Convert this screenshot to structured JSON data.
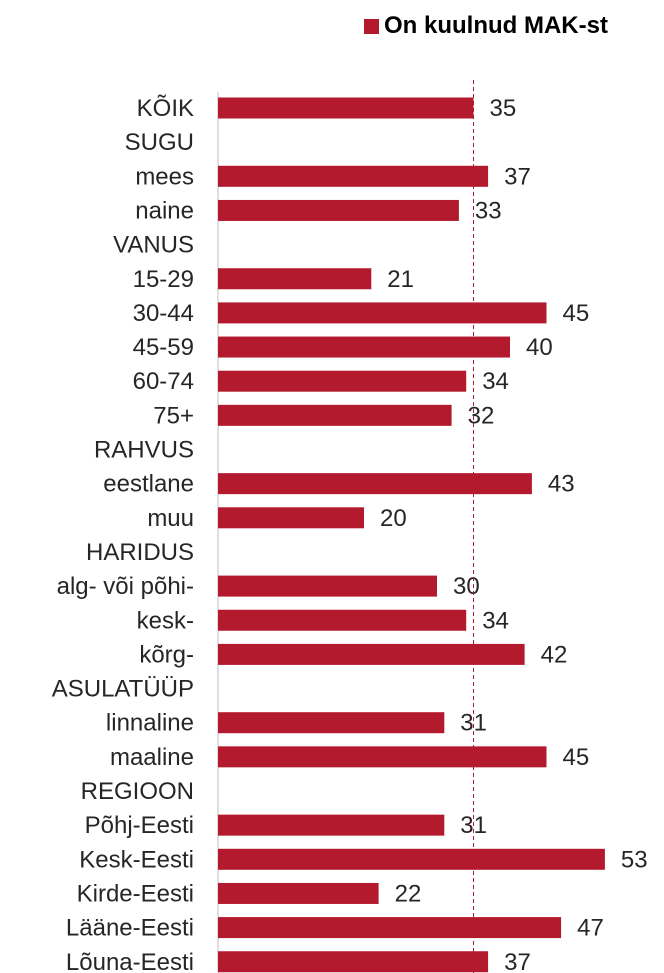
{
  "legend": {
    "label": "On kuulnud MAK-st",
    "color": "#b31a2d"
  },
  "chart_data": {
    "type": "bar",
    "orientation": "horizontal",
    "legend_position": "top-right",
    "grid": false,
    "reference_line": {
      "value": 35,
      "style": "dashed",
      "color": "#b31a2d"
    },
    "xlim": [
      0,
      55
    ],
    "categories": [
      "KÕIK",
      "SUGU",
      "mees",
      "naine",
      "VANUS",
      "15-29",
      "30-44",
      "45-59",
      "60-74",
      "75+",
      "RAHVUS",
      "eestlane",
      "muu",
      "HARIDUS",
      "alg- või põhi-",
      "kesk-",
      "kõrg-",
      "ASULATÜÜP",
      "linnaline",
      "maaline",
      "REGIOON",
      "Põhj-Eesti",
      "Kesk-Eesti",
      "Kirde-Eesti",
      "Lääne-Eesti",
      "Lõuna-Eesti"
    ],
    "series": [
      {
        "name": "On kuulnud MAK-st",
        "color": "#b31a2d",
        "values": [
          35,
          null,
          37,
          33,
          null,
          21,
          45,
          40,
          34,
          32,
          null,
          43,
          20,
          null,
          30,
          34,
          42,
          null,
          31,
          45,
          null,
          31,
          53,
          22,
          47,
          37
        ]
      }
    ]
  }
}
